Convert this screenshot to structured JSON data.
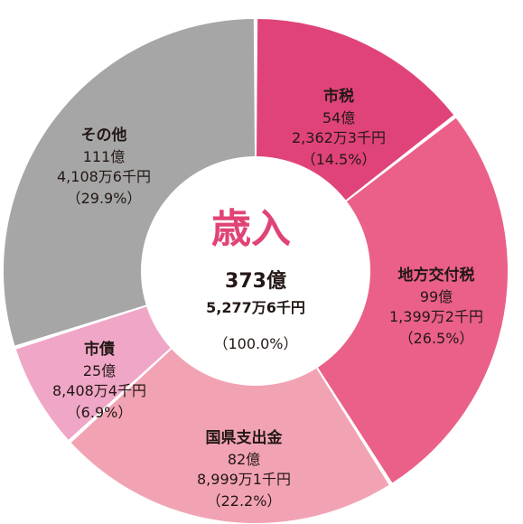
{
  "chart_data": {
    "type": "pie",
    "style": "donut",
    "center": {
      "title": "歳入",
      "total": "373億",
      "total_sub": "5,277万6千円",
      "percent": "（100.0%）"
    },
    "slices": [
      {
        "name": "市税",
        "amount_oku": "54億",
        "amount_rest": "2,362万3千円",
        "percent_label": "（14.5%）",
        "value": 14.5,
        "color": "#e0437a"
      },
      {
        "name": "地方交付税",
        "amount_oku": "99億",
        "amount_rest": "1,399万2千円",
        "percent_label": "（26.5%）",
        "value": 26.5,
        "color": "#ea6088"
      },
      {
        "name": "国県支出金",
        "amount_oku": "82億",
        "amount_rest": "8,999万1千円",
        "percent_label": "（22.2%）",
        "value": 22.2,
        "color": "#f2a3b3"
      },
      {
        "name": "市債",
        "amount_oku": "25億",
        "amount_rest": "8,408万4千円",
        "percent_label": "（6.9%）",
        "value": 6.9,
        "color": "#f0a6c6"
      },
      {
        "name": "その他",
        "amount_oku": "111億",
        "amount_rest": "4,108万6千円",
        "percent_label": "（29.9%）",
        "value": 29.9,
        "color": "#a6a6a6"
      }
    ]
  }
}
